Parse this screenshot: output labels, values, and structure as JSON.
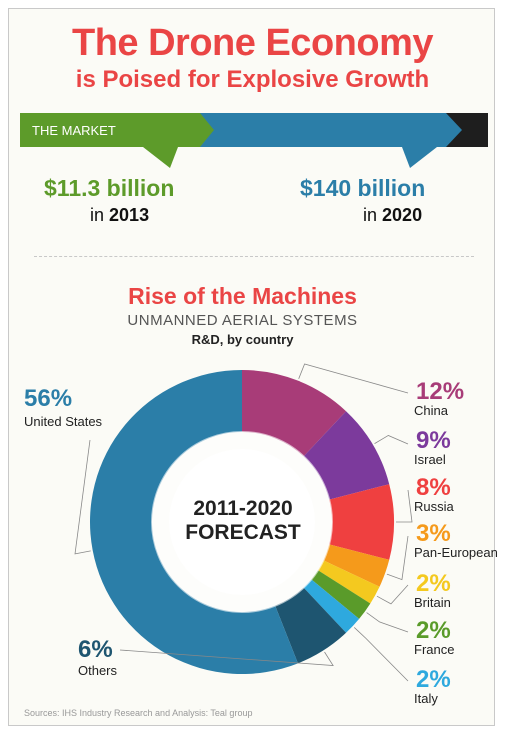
{
  "header": {
    "title_line1": "The Drone Economy",
    "title_line2": "is Poised for Explosive Growth"
  },
  "market": {
    "label": "THE MARKET",
    "start": {
      "amount": "$11.3 billion",
      "in_word": "in",
      "year": "2013"
    },
    "end": {
      "amount": "$140 billion",
      "in_word": "in",
      "year": "2020"
    }
  },
  "colors": {
    "title_red": "#ea4545",
    "green": "#5d9b2a",
    "blue": "#2b7ea8",
    "dark": "#1e1e1e"
  },
  "chart_data": {
    "type": "pie",
    "title": "Rise of the Machines",
    "subtitle": "UNMANNED AERIAL SYSTEMS",
    "caption": "R&D, by country",
    "center_label": [
      "2011-2020",
      "FORECAST"
    ],
    "categories": [
      "China",
      "Israel",
      "Russia",
      "Pan-European",
      "Britain",
      "France",
      "Italy",
      "Others",
      "United States"
    ],
    "values": [
      12,
      9,
      8,
      3,
      2,
      2,
      2,
      6,
      56
    ],
    "labels": [
      "12%",
      "9%",
      "8%",
      "3%",
      "2%",
      "2%",
      "2%",
      "6%",
      "56%"
    ],
    "colors": [
      "#a83c78",
      "#7c3a9c",
      "#ef4040",
      "#f59a1b",
      "#f4c91f",
      "#5a9b2a",
      "#2ea9de",
      "#1e5570",
      "#2b7ea8"
    ]
  },
  "source": "Sources: IHS Industry Research and Analysis: Teal group"
}
